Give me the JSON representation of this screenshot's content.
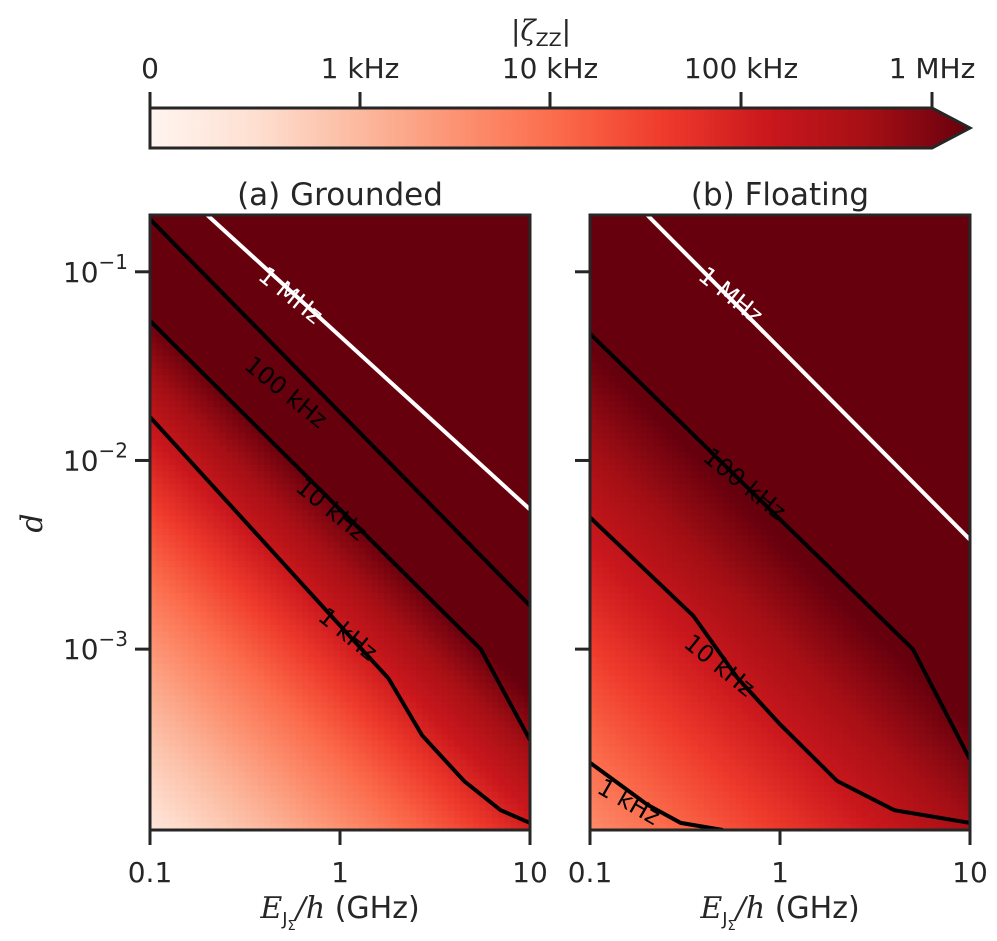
{
  "chart_data": [
    {
      "type": "heatmap",
      "panel": "a",
      "title": "(a) Grounded",
      "xlabel": "E_JΣ/h (GHz)",
      "ylabel": "d",
      "x_scale": "log",
      "y_scale": "log",
      "xlim": [
        0.1,
        10
      ],
      "ylim": [
        0.00011,
        0.2
      ],
      "x_ticks": [
        0.1,
        1,
        10
      ],
      "x_tick_labels": [
        "0.1",
        "1",
        "10"
      ],
      "y_ticks": [
        0.1,
        0.01,
        0.001
      ],
      "y_tick_labels": [
        "10",
        "10",
        "10"
      ],
      "y_tick_exponents": [
        "−1",
        "−2",
        "−3"
      ],
      "contours": [
        {
          "level": "1 MHz",
          "color": "#ffffff",
          "points": [
            [
              0.2,
              0.2
            ],
            [
              10,
              0.0055
            ]
          ],
          "label": {
            "text": "1 MHz",
            "x": 0.55,
            "y": 0.075,
            "angle": 39
          }
        },
        {
          "level": "100 kHz",
          "color": "#000000",
          "points": [
            [
              0.1,
              0.19
            ],
            [
              10,
              0.0017
            ]
          ],
          "label": {
            "text": "100 kHz",
            "x": 0.52,
            "y": 0.023,
            "angle": 39
          }
        },
        {
          "level": "10 kHz",
          "color": "#000000",
          "points": [
            [
              0.1,
              0.055
            ],
            [
              5.5,
              0.001
            ],
            [
              10,
              0.00033
            ]
          ],
          "label": {
            "text": "10 kHz",
            "x": 0.9,
            "y": 0.0055,
            "angle": 39
          }
        },
        {
          "level": "1 kHz",
          "color": "#000000",
          "points": [
            [
              0.1,
              0.017
            ],
            [
              1.1,
              0.0012
            ],
            [
              1.8,
              0.0007
            ],
            [
              2.7,
              0.00035
            ],
            [
              4.5,
              0.0002
            ],
            [
              7,
              0.00014
            ],
            [
              10,
              0.00012
            ]
          ],
          "label": {
            "text": "1 kHz",
            "x": 1.1,
            "y": 0.0012,
            "angle": 39
          }
        }
      ]
    },
    {
      "type": "heatmap",
      "panel": "b",
      "title": "(b) Floating",
      "xlabel": "E_JΣ/h (GHz)",
      "ylabel": "",
      "x_scale": "log",
      "y_scale": "log",
      "xlim": [
        0.1,
        10
      ],
      "ylim": [
        0.00011,
        0.2
      ],
      "x_ticks": [
        0.1,
        1,
        10
      ],
      "x_tick_labels": [
        "0.1",
        "1",
        "10"
      ],
      "contours": [
        {
          "level": "1 MHz",
          "color": "#ffffff",
          "points": [
            [
              0.2,
              0.2
            ],
            [
              10,
              0.0038
            ]
          ],
          "label": {
            "text": "1 MHz",
            "x": 0.55,
            "y": 0.075,
            "angle": 39
          }
        },
        {
          "level": "100 kHz",
          "color": "#000000",
          "points": [
            [
              0.1,
              0.047
            ],
            [
              5,
              0.001
            ],
            [
              10,
              0.00026
            ]
          ],
          "label": {
            "text": "100 kHz",
            "x": 0.65,
            "y": 0.0075,
            "angle": 39
          }
        },
        {
          "level": "10 kHz",
          "color": "#000000",
          "points": [
            [
              0.1,
              0.005
            ],
            [
              0.35,
              0.0015
            ],
            [
              0.6,
              0.0007
            ],
            [
              1.0,
              0.0004
            ],
            [
              2.0,
              0.0002
            ],
            [
              4,
              0.00014
            ],
            [
              10,
              0.00012
            ]
          ],
          "label": {
            "text": "10 kHz",
            "x": 0.48,
            "y": 0.00082,
            "angle": 39
          }
        },
        {
          "level": "1 kHz",
          "color": "#000000",
          "points": [
            [
              0.1,
              0.00025
            ],
            [
              0.2,
              0.00015
            ],
            [
              0.3,
              0.00012
            ],
            [
              0.5,
              0.00011
            ]
          ],
          "label": {
            "text": "1 kHz",
            "x": 0.16,
            "y": 0.000155,
            "angle": 30
          }
        }
      ]
    }
  ],
  "colorbar": {
    "label_symbol": "ζ",
    "label_subscript": "ZZ",
    "ticks": [
      "0",
      "1 kHz",
      "10 kHz",
      "100 kHz",
      "1 MHz"
    ],
    "colormap": [
      "#fff5f0",
      "#fee0d2",
      "#fcbba1",
      "#fc9272",
      "#fb6a4a",
      "#ef3b2c",
      "#cb181d",
      "#a50f15",
      "#67000d"
    ],
    "extend": "max"
  }
}
